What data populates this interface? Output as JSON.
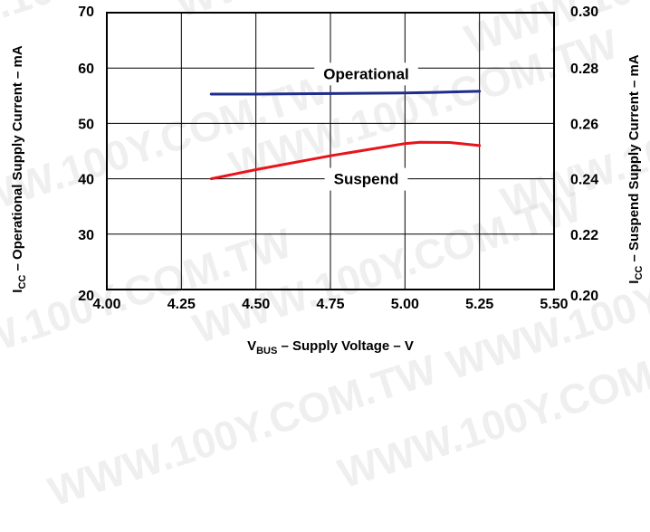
{
  "watermark": "WWW.100Y.COM.TW",
  "chart_data": {
    "type": "line",
    "title": "",
    "xlabel": {
      "main": "V",
      "sub": "BUS",
      "rest": " – Supply Voltage – V"
    },
    "ylabel_left": {
      "main": "I",
      "sub": "CC",
      "rest": " – Operational Supply Current – mA"
    },
    "ylabel_right": {
      "main": "I",
      "sub": "CC",
      "rest": " – Suspend Supply Current – mA"
    },
    "xlim": [
      4.0,
      5.5
    ],
    "ylim_left": [
      20,
      70
    ],
    "ylim_right": [
      0.2,
      0.3
    ],
    "x_ticks": [
      "4.00",
      "4.25",
      "4.50",
      "4.75",
      "5.00",
      "5.25",
      "5.50"
    ],
    "y_ticks_left": [
      "20",
      "30",
      "40",
      "50",
      "60",
      "70"
    ],
    "y_ticks_right": [
      "0.20",
      "0.22",
      "0.24",
      "0.26",
      "0.28",
      "0.30"
    ],
    "grid": true,
    "series": [
      {
        "name": "Operational",
        "axis": "left",
        "color": "#1f2d8a",
        "x": [
          4.35,
          4.5,
          4.75,
          5.0,
          5.1,
          5.25
        ],
        "y": [
          55.3,
          55.3,
          55.4,
          55.5,
          55.6,
          55.8
        ]
      },
      {
        "name": "Suspend",
        "axis": "right",
        "color": "#e8141b",
        "x": [
          4.35,
          4.5,
          4.75,
          5.0,
          5.05,
          5.15,
          5.25
        ],
        "y": [
          0.24,
          0.2433,
          0.2483,
          0.2527,
          0.2532,
          0.2531,
          0.252
        ]
      }
    ],
    "annotations": [
      {
        "text": "Operational",
        "x": 4.87,
        "y_left": 59.0
      },
      {
        "text": "Suspend",
        "x": 4.87,
        "y_left": 40.0
      }
    ]
  }
}
